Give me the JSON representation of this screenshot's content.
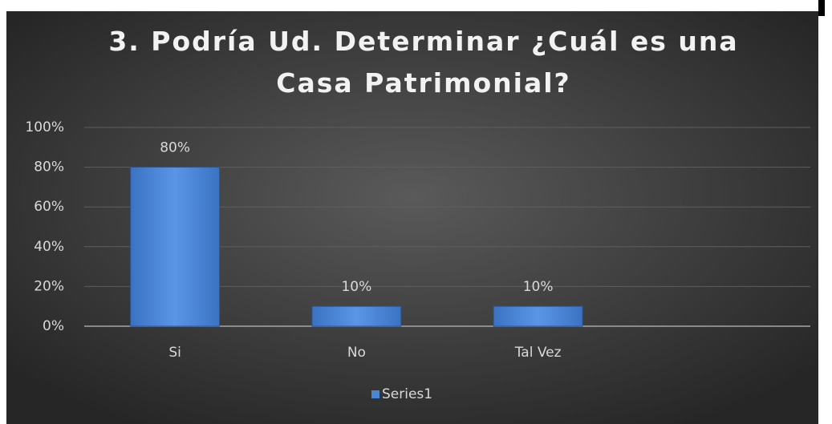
{
  "chart_data": {
    "type": "bar",
    "title": "3. Podría Ud. Determinar ¿Cuál es una Casa Patrimonial?",
    "categories": [
      "Si",
      "No",
      "Tal Vez",
      null
    ],
    "series": [
      {
        "name": "Series1",
        "color": "#4a86d8",
        "values": [
          80,
          10,
          10,
          null
        ],
        "value_labels": [
          "80%",
          "10%",
          "10%",
          null
        ]
      }
    ],
    "ylim": [
      0,
      100
    ],
    "yticks": [
      {
        "value": 0,
        "label": "0%"
      },
      {
        "value": 20,
        "label": "20%"
      },
      {
        "value": 40,
        "label": "40%"
      },
      {
        "value": 60,
        "label": "60%"
      },
      {
        "value": 80,
        "label": "80%"
      },
      {
        "value": 100,
        "label": "100%"
      }
    ],
    "grid": true,
    "legend": "bottom"
  }
}
